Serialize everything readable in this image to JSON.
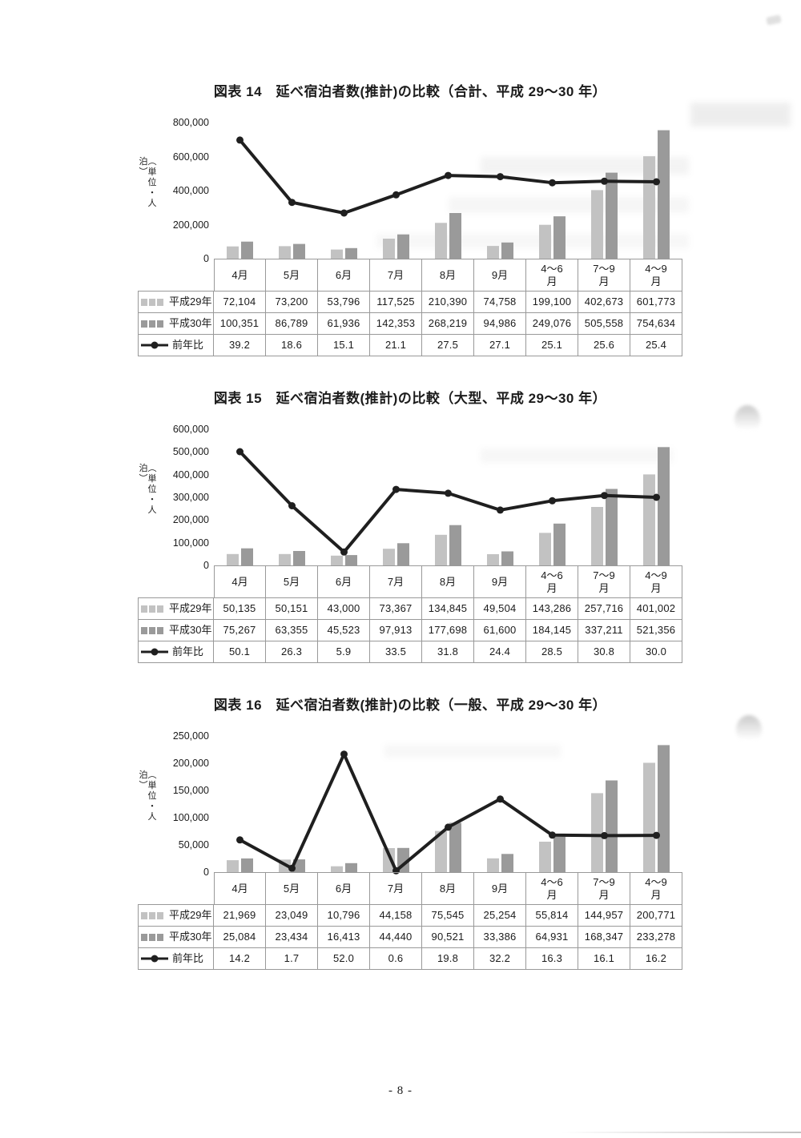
{
  "page": {
    "footer_page_number": "- 8 -"
  },
  "colors": {
    "bar_h29": "#c2c2c2",
    "bar_h30": "#9a9a9a",
    "line": "#1f1f1f",
    "table_border": "#999999",
    "text": "#1b1b1b"
  },
  "chart_data": [
    {
      "type": "bar+line",
      "title": "図表 14　延べ宿泊者数(推計)の比較（合計、平成 29～30 年）",
      "unit_label": "（単位・人泊）",
      "categories": [
        "4月",
        "5月",
        "6月",
        "7月",
        "8月",
        "9月",
        "4～6\n月",
        "7～9\n月",
        "4～9\n月"
      ],
      "series": [
        {
          "name": "平成29年",
          "values": [
            72104,
            73200,
            53796,
            117525,
            210390,
            74758,
            199100,
            402673,
            601773
          ]
        },
        {
          "name": "平成30年",
          "values": [
            100351,
            86789,
            61936,
            142353,
            268219,
            94986,
            249076,
            505558,
            754634
          ]
        }
      ],
      "line_series": {
        "name": "前年比",
        "values": [
          39.2,
          18.6,
          15.1,
          21.1,
          27.5,
          27.1,
          25.1,
          25.6,
          25.4
        ]
      },
      "ylim": [
        0,
        800000
      ],
      "ytick_step": 200000,
      "ytick_labels": [
        "800,000",
        "600,000",
        "400,000",
        "200,000",
        "0"
      ],
      "secondary_ylim": [
        0,
        45
      ],
      "grid": false,
      "legend_position": "table-left-column"
    },
    {
      "type": "bar+line",
      "title": "図表 15　延べ宿泊者数(推計)の比較（大型、平成 29～30 年）",
      "unit_label": "（単位・人泊）",
      "categories": [
        "4月",
        "5月",
        "6月",
        "7月",
        "8月",
        "9月",
        "4～6\n月",
        "7～9\n月",
        "4～9\n月"
      ],
      "series": [
        {
          "name": "平成29年",
          "values": [
            50135,
            50151,
            43000,
            73367,
            134845,
            49504,
            143286,
            257716,
            401002
          ]
        },
        {
          "name": "平成30年",
          "values": [
            75267,
            63355,
            45523,
            97913,
            177698,
            61600,
            184145,
            337211,
            521356
          ]
        }
      ],
      "line_series": {
        "name": "前年比",
        "values": [
          50.1,
          26.3,
          5.9,
          33.5,
          31.8,
          24.4,
          28.5,
          30.8,
          30.0
        ]
      },
      "ylim": [
        0,
        600000
      ],
      "ytick_step": 100000,
      "ytick_labels": [
        "600,000",
        "500,000",
        "400,000",
        "300,000",
        "200,000",
        "100,000",
        "0"
      ],
      "secondary_ylim": [
        0,
        60
      ],
      "grid": false,
      "legend_position": "table-left-column"
    },
    {
      "type": "bar+line",
      "title": "図表 16　延べ宿泊者数(推計)の比較（一般、平成 29～30 年）",
      "unit_label": "（単位・人泊）",
      "categories": [
        "4月",
        "5月",
        "6月",
        "7月",
        "8月",
        "9月",
        "4～6\n月",
        "7～9\n月",
        "4～9\n月"
      ],
      "series": [
        {
          "name": "平成29年",
          "values": [
            21969,
            23049,
            10796,
            44158,
            75545,
            25254,
            55814,
            144957,
            200771
          ]
        },
        {
          "name": "平成30年",
          "values": [
            25084,
            23434,
            16413,
            44440,
            90521,
            33386,
            64931,
            168347,
            233278
          ]
        }
      ],
      "line_series": {
        "name": "前年比",
        "values": [
          14.2,
          1.7,
          52.0,
          0.6,
          19.8,
          32.2,
          16.3,
          16.1,
          16.2
        ]
      },
      "ylim": [
        0,
        250000
      ],
      "ytick_step": 50000,
      "ytick_labels": [
        "250,000",
        "200,000",
        "150,000",
        "100,000",
        "50,000",
        "0"
      ],
      "secondary_ylim": [
        0,
        60
      ],
      "grid": false,
      "legend_position": "table-left-column"
    }
  ]
}
